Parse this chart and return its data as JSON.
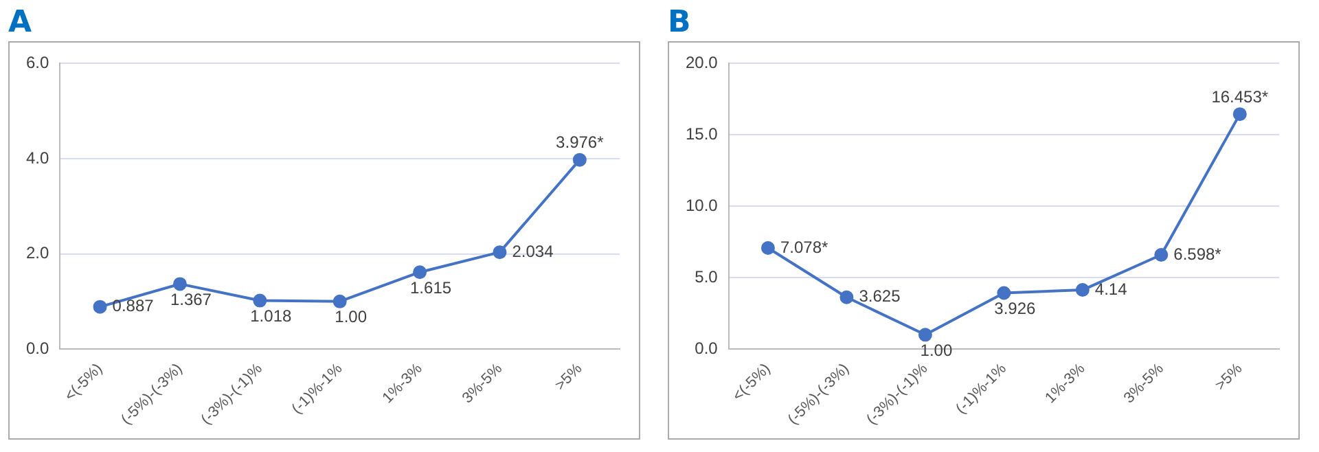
{
  "chart_data": [
    {
      "type": "line",
      "title": "A",
      "categories": [
        "<(-5%)",
        "(-5%)-(-3%)",
        "(-3%)-(-1)%",
        "(-1)%-1%",
        "1%-3%",
        "3%-5%",
        ">5%"
      ],
      "series": [
        {
          "color": "#4472c4",
          "values": [
            0.887,
            1.367,
            1.018,
            1.0,
            1.615,
            2.034,
            3.976
          ],
          "value_labels": [
            "0.887",
            "1.367",
            "1.018",
            "1.00",
            "1.615",
            "2.034",
            "3.976*"
          ]
        }
      ],
      "ylim": [
        0,
        6
      ],
      "yticks": [
        {
          "value": 0,
          "label": "0.0"
        },
        {
          "value": 2,
          "label": "2.0"
        },
        {
          "value": 4,
          "label": "4.0"
        },
        {
          "value": 6,
          "label": "6.0"
        }
      ],
      "grid": "y",
      "legend": false,
      "marker": "circle"
    },
    {
      "type": "line",
      "title": "B",
      "categories": [
        "<(-5%)",
        "(-5%)-(-3%)",
        "(-3%)-(-1)%",
        "(-1)%-1%",
        "1%-3%",
        "3%-5%",
        ">5%"
      ],
      "series": [
        {
          "color": "#4472c4",
          "values": [
            7.078,
            3.625,
            1.0,
            3.926,
            4.14,
            6.598,
            16.453
          ],
          "value_labels": [
            "7.078*",
            "3.625",
            "1.00",
            "3.926",
            "4.14",
            "6.598*",
            "16.453*"
          ]
        }
      ],
      "ylim": [
        0,
        20
      ],
      "yticks": [
        {
          "value": 0,
          "label": "0.0"
        },
        {
          "value": 5,
          "label": "5.0"
        },
        {
          "value": 10,
          "label": "10.0"
        },
        {
          "value": 15,
          "label": "15.0"
        },
        {
          "value": 20,
          "label": "20.0"
        }
      ],
      "grid": "y",
      "legend": false,
      "marker": "circle"
    }
  ]
}
